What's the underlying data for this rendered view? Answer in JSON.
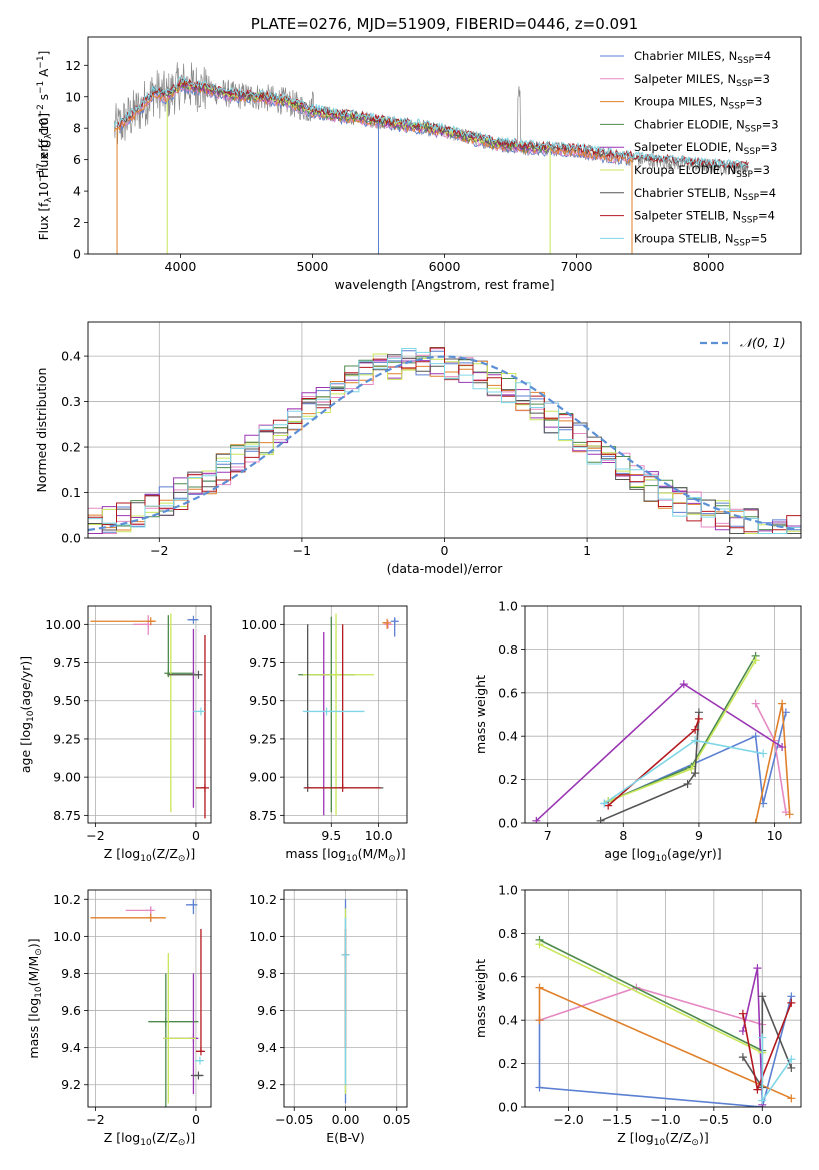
{
  "figure_title": "PLATE=0276, MJD=51909, FIBERID=0446, z=0.091",
  "colors": {
    "chabrier_miles": "#5b7fd1",
    "salpeter_miles": "#e589c3",
    "kroupa_miles": "#e0802a",
    "chabrier_elodie": "#4c8a4c",
    "salpeter_elodie": "#9a35b3",
    "kroupa_elodie": "#c8e65a",
    "chabrier_stelib": "#555555",
    "salpeter_stelib": "#b3181e",
    "kroupa_stelib": "#7fd6e6",
    "data_spectrum": "#888888",
    "normal_curve": "#5b8fd6",
    "grid": "#b0b0b0"
  },
  "chart_data": [
    {
      "id": "spectrum",
      "type": "line",
      "title": "PLATE=0276, MJD=51909, FIBERID=0446, z=0.091",
      "xlabel": "wavelength [Angstrom, rest frame]",
      "ylabel": "Flux [f",
      "ylabel_sub": "λ",
      "ylabel_rest": "10",
      "ylabel_exp": "−17",
      "ylabel_tail": " erg cm",
      "ylabel_exp2": "−2",
      "ylabel_tail2": " s",
      "ylabel_exp3": "−1",
      "ylabel_tail3": " A",
      "ylabel_exp4": "−1",
      "ylabel_end": "]",
      "xlim": [
        3300,
        8700
      ],
      "ylim": [
        0,
        13.8
      ],
      "grid": false,
      "xticks": [
        4000,
        5000,
        6000,
        7000,
        8000
      ],
      "yticks": [
        0,
        2,
        4,
        6,
        8,
        10,
        12
      ],
      "legend_position": "top-right",
      "legend": [
        {
          "name": "Chabrier MILES, N",
          "sub": "SSP",
          "suffix": "=4",
          "color_key": "chabrier_miles"
        },
        {
          "name": "Salpeter MILES, N",
          "sub": "SSP",
          "suffix": "=3",
          "color_key": "salpeter_miles"
        },
        {
          "name": "Kroupa MILES, N",
          "sub": "SSP",
          "suffix": "=3",
          "color_key": "kroupa_miles"
        },
        {
          "name": "Chabrier ELODIE, N",
          "sub": "SSP",
          "suffix": "=3",
          "color_key": "chabrier_elodie"
        },
        {
          "name": "Salpeter ELODIE, N",
          "sub": "SSP",
          "suffix": "=3",
          "color_key": "salpeter_elodie"
        },
        {
          "name": "Kroupa ELODIE, N",
          "sub": "SSP",
          "suffix": "=3",
          "color_key": "kroupa_elodie"
        },
        {
          "name": "Chabrier STELIB, N",
          "sub": "SSP",
          "suffix": "=4",
          "color_key": "chabrier_stelib"
        },
        {
          "name": "Salpeter STELIB, N",
          "sub": "SSP",
          "suffix": "=4",
          "color_key": "salpeter_stelib"
        },
        {
          "name": "Kroupa STELIB, N",
          "sub": "SSP",
          "suffix": "=5",
          "color_key": "kroupa_stelib"
        }
      ],
      "continuum": {
        "x": [
          3520,
          3600,
          3700,
          3800,
          3900,
          4000,
          4200,
          4400,
          4600,
          4800,
          5000,
          5200,
          5400,
          5600,
          5800,
          6000,
          6200,
          6400,
          6600,
          6800,
          7000,
          7200,
          7400,
          7600,
          7800,
          8000,
          8200
        ],
        "y": [
          8.0,
          8.6,
          9.3,
          10.3,
          10.0,
          10.8,
          10.5,
          10.1,
          10.0,
          9.7,
          9.1,
          8.8,
          8.6,
          8.3,
          8.1,
          7.8,
          7.4,
          7.0,
          6.8,
          6.7,
          6.6,
          6.3,
          6.1,
          5.9,
          5.8,
          5.6,
          5.5
        ]
      }
    },
    {
      "id": "residuals",
      "type": "histogram",
      "xlabel": "(data-model)/error",
      "ylabel": "Normed distribution",
      "xlim": [
        -2.5,
        2.5
      ],
      "ylim": [
        0,
        0.475
      ],
      "grid": true,
      "xticks": [
        -2,
        -1,
        0,
        1,
        2
      ],
      "yticks": [
        0.0,
        0.1,
        0.2,
        0.3,
        0.4
      ],
      "legend_position": "top-right",
      "legend": [
        {
          "name": "𝒩(0, 1)",
          "style": "dashed",
          "color_key": "normal_curve"
        }
      ],
      "bin_width": 0.1
    },
    {
      "id": "age_vs_Z",
      "type": "errorbar",
      "xlabel": "Z [log",
      "xlabel_sub": "10",
      "xlabel_rest": "(Z/Z",
      "xlabel_sub2": "⊙",
      "xlabel_end": ")]",
      "ylabel": "age  [log",
      "ylabel_sub": "10",
      "ylabel_rest": "(age/yr)]",
      "xlim": [
        -2.15,
        0.3
      ],
      "ylim": [
        8.7,
        10.12
      ],
      "grid": true,
      "xticks": [
        -2,
        0
      ],
      "yticks": [
        8.75,
        9.0,
        9.25,
        9.5,
        9.75,
        10.0
      ],
      "points": [
        {
          "x": -0.05,
          "y": 10.03,
          "xerr": [
            0.12,
            0.1
          ],
          "yerr": [
            0.0,
            0.0
          ],
          "color_key": "chabrier_miles"
        },
        {
          "x": -0.95,
          "y": 10.0,
          "xerr": [
            0.3,
            0.0
          ],
          "yerr": [
            0.07,
            0.06
          ],
          "color_key": "salpeter_miles"
        },
        {
          "x": -0.9,
          "y": 10.02,
          "xerr": [
            1.2,
            0.1
          ],
          "yerr": [
            0.0,
            0.0
          ],
          "color_key": "kroupa_miles"
        },
        {
          "x": -0.55,
          "y": 9.68,
          "xerr": [
            0.0,
            0.52
          ],
          "yerr": [
            0.0,
            0.38
          ],
          "color_key": "chabrier_elodie"
        },
        {
          "x": -0.05,
          "y": 9.67,
          "xerr": [
            0.0,
            0.1
          ],
          "yerr": [
            0.87,
            0.3
          ],
          "color_key": "salpeter_elodie"
        },
        {
          "x": -0.5,
          "y": 9.67,
          "xerr": [
            0.0,
            0.55
          ],
          "yerr": [
            0.9,
            0.4
          ],
          "color_key": "kroupa_elodie"
        },
        {
          "x": 0.05,
          "y": 9.67,
          "xerr": [
            0.62,
            0.0
          ],
          "yerr": [
            0.0,
            0.0
          ],
          "color_key": "chabrier_stelib"
        },
        {
          "x": 0.18,
          "y": 8.93,
          "xerr": [
            0.18,
            0.02
          ],
          "yerr": [
            0.2,
            1.0
          ],
          "color_key": "salpeter_stelib"
        },
        {
          "x": 0.1,
          "y": 9.43,
          "xerr": [
            0.15,
            0.05
          ],
          "yerr": [
            0.0,
            0.0
          ],
          "color_key": "kroupa_stelib"
        }
      ]
    },
    {
      "id": "age_vs_mass",
      "type": "errorbar",
      "xlabel": "mass [log",
      "xlabel_sub": "10",
      "xlabel_rest": "(M/M",
      "xlabel_sub2": "⊙",
      "xlabel_end": ")]",
      "ylabel": "",
      "xlim": [
        9.0,
        10.3
      ],
      "ylim": [
        8.7,
        10.12
      ],
      "grid": true,
      "xticks": [
        9.5,
        10.0
      ],
      "yticks": [
        8.75,
        9.0,
        9.25,
        9.5,
        9.75,
        10.0
      ],
      "points": [
        {
          "x": 10.17,
          "y": 10.02,
          "xerr": [
            0.0,
            0.0
          ],
          "yerr": [
            0.1,
            0.02
          ],
          "color_key": "chabrier_miles"
        },
        {
          "x": 10.1,
          "y": 10.0,
          "xerr": [
            0.0,
            0.0
          ],
          "yerr": [
            0.0,
            0.0
          ],
          "color_key": "salpeter_miles"
        },
        {
          "x": 10.09,
          "y": 10.01,
          "xerr": [
            0.05,
            0.0
          ],
          "yerr": [
            0.04,
            0.0
          ],
          "color_key": "kroupa_miles"
        },
        {
          "x": 9.5,
          "y": 9.67,
          "xerr": [
            0.35,
            0.25
          ],
          "yerr": [
            0.9,
            0.38
          ],
          "color_key": "chabrier_elodie"
        },
        {
          "x": 9.42,
          "y": 9.67,
          "xerr": [
            0.0,
            0.0
          ],
          "yerr": [
            0.92,
            0.28
          ],
          "color_key": "salpeter_elodie"
        },
        {
          "x": 9.55,
          "y": 9.67,
          "xerr": [
            0.35,
            0.4
          ],
          "yerr": [
            0.92,
            0.4
          ],
          "color_key": "kroupa_elodie"
        },
        {
          "x": 9.25,
          "y": 8.93,
          "xerr": [
            0.0,
            0.8
          ],
          "yerr": [
            0.0,
            1.07
          ],
          "color_key": "chabrier_stelib"
        },
        {
          "x": 9.62,
          "y": 8.93,
          "xerr": [
            0.4,
            0.4
          ],
          "yerr": [
            0.0,
            1.07
          ],
          "color_key": "salpeter_stelib"
        },
        {
          "x": 9.45,
          "y": 9.43,
          "xerr": [
            0.25,
            0.4
          ],
          "yerr": [
            0.0,
            0.0
          ],
          "color_key": "kroupa_stelib"
        }
      ]
    },
    {
      "id": "weight_vs_age",
      "type": "line",
      "xlabel": "age  [log",
      "xlabel_sub": "10",
      "xlabel_rest": "(age/yr)]",
      "ylabel": "mass weight",
      "xlim": [
        6.7,
        10.35
      ],
      "ylim": [
        0.0,
        1.0
      ],
      "grid": true,
      "xticks": [
        7,
        8,
        9,
        10
      ],
      "yticks": [
        0.0,
        0.2,
        0.4,
        0.6,
        0.8,
        1.0
      ],
      "series": [
        {
          "color_key": "chabrier_miles",
          "x": [
            7.75,
            9.75,
            9.85,
            10.15
          ],
          "y": [
            0.09,
            0.4,
            0.09,
            0.51
          ]
        },
        {
          "color_key": "salpeter_miles",
          "x": [
            9.75,
            10.0,
            10.15
          ],
          "y": [
            0.55,
            0.38,
            0.05
          ]
        },
        {
          "color_key": "kroupa_miles",
          "x": [
            9.75,
            10.1,
            10.2
          ],
          "y": [
            0.0,
            0.55,
            0.04
          ]
        },
        {
          "color_key": "chabrier_elodie",
          "x": [
            7.8,
            8.9,
            9.75
          ],
          "y": [
            0.1,
            0.26,
            0.77
          ]
        },
        {
          "color_key": "salpeter_elodie",
          "x": [
            6.85,
            8.8,
            10.1
          ],
          "y": [
            0.01,
            0.64,
            0.35
          ]
        },
        {
          "color_key": "kroupa_elodie",
          "x": [
            7.8,
            8.9,
            9.75
          ],
          "y": [
            0.1,
            0.25,
            0.75
          ]
        },
        {
          "color_key": "chabrier_stelib",
          "x": [
            7.7,
            8.85,
            8.95,
            9.0
          ],
          "y": [
            0.01,
            0.18,
            0.23,
            0.51
          ]
        },
        {
          "color_key": "salpeter_stelib",
          "x": [
            7.8,
            8.95,
            9.0
          ],
          "y": [
            0.08,
            0.43,
            0.48
          ]
        },
        {
          "color_key": "kroupa_stelib",
          "x": [
            7.75,
            8.95,
            9.85
          ],
          "y": [
            0.09,
            0.38,
            0.32
          ]
        }
      ]
    },
    {
      "id": "mass_vs_Z",
      "type": "errorbar",
      "xlabel": "Z [log",
      "xlabel_sub": "10",
      "xlabel_rest": "(Z/Z",
      "xlabel_sub2": "⊙",
      "xlabel_end": ")]",
      "ylabel": "mass [log",
      "ylabel_sub": "10",
      "ylabel_rest": "(M/M",
      "ylabel_sub2": "⊙",
      "ylabel_end": ")]",
      "xlim": [
        -2.15,
        0.3
      ],
      "ylim": [
        9.08,
        10.25
      ],
      "grid": true,
      "xticks": [
        -2,
        0
      ],
      "yticks": [
        9.2,
        9.4,
        9.6,
        9.8,
        10.0,
        10.2
      ],
      "points": [
        {
          "x": -0.05,
          "y": 10.17,
          "xerr": [
            0.15,
            0.05
          ],
          "yerr": [
            0.05,
            0.03
          ],
          "color_key": "chabrier_miles"
        },
        {
          "x": -0.9,
          "y": 10.14,
          "xerr": [
            0.5,
            0.0
          ],
          "yerr": [
            0.06,
            0.02
          ],
          "color_key": "salpeter_miles"
        },
        {
          "x": -0.9,
          "y": 10.1,
          "xerr": [
            1.2,
            0.3
          ],
          "yerr": [
            0.0,
            0.0
          ],
          "color_key": "kroupa_miles"
        },
        {
          "x": -0.6,
          "y": 9.54,
          "xerr": [
            0.35,
            0.65
          ],
          "yerr": [
            0.46,
            0.26
          ],
          "color_key": "chabrier_elodie"
        },
        {
          "x": -0.05,
          "y": 9.45,
          "xerr": [
            0.6,
            0.1
          ],
          "yerr": [
            0.3,
            0.35
          ],
          "color_key": "salpeter_elodie"
        },
        {
          "x": -0.55,
          "y": 9.45,
          "xerr": [
            0.1,
            0.55
          ],
          "yerr": [
            0.35,
            0.46
          ],
          "color_key": "kroupa_elodie"
        },
        {
          "x": 0.05,
          "y": 9.25,
          "xerr": [
            0.15,
            0.1
          ],
          "yerr": [
            0.0,
            0.0
          ],
          "color_key": "chabrier_stelib"
        },
        {
          "x": 0.1,
          "y": 9.38,
          "xerr": [
            0.1,
            0.05
          ],
          "yerr": [
            0.0,
            0.66
          ],
          "color_key": "salpeter_stelib"
        },
        {
          "x": 0.08,
          "y": 9.33,
          "xerr": [
            0.1,
            0.05
          ],
          "yerr": [
            0.0,
            0.0
          ],
          "color_key": "kroupa_stelib"
        }
      ]
    },
    {
      "id": "mass_vs_ebv",
      "type": "errorbar",
      "xlabel": "E(B-V)",
      "ylabel": "",
      "xlim": [
        -0.06,
        0.06
      ],
      "ylim": [
        9.08,
        10.25
      ],
      "grid": true,
      "xticks": [
        -0.05,
        0.0,
        0.05
      ],
      "yticks": [
        9.2,
        9.4,
        9.6,
        9.8,
        10.0,
        10.2
      ],
      "points": [
        {
          "x": 0.0,
          "y": 9.9,
          "xerr": [
            0.0,
            0.0
          ],
          "yerr": [
            0.8,
            0.3
          ],
          "color_key": "chabrier_miles"
        },
        {
          "x": 0.0,
          "y": 9.9,
          "xerr": [
            0.0,
            0.0
          ],
          "yerr": [
            0.75,
            0.25
          ],
          "color_key": "kroupa_elodie"
        },
        {
          "x": 0.0,
          "y": 9.9,
          "xerr": [
            0.0,
            0.0
          ],
          "yerr": [
            0.5,
            0.14
          ],
          "color_key": "salpeter_stelib"
        },
        {
          "x": 0.0,
          "y": 9.9,
          "xerr": [
            0.0,
            0.0
          ],
          "yerr": [
            0.7,
            0.2
          ],
          "color_key": "kroupa_stelib"
        }
      ]
    },
    {
      "id": "weight_vs_Z",
      "type": "line",
      "xlabel": "Z [log",
      "xlabel_sub": "10",
      "xlabel_rest": "(Z/Z",
      "xlabel_sub2": "⊙",
      "xlabel_end": ")]",
      "ylabel": "mass weight",
      "xlim": [
        -2.45,
        0.4
      ],
      "ylim": [
        0.0,
        1.0
      ],
      "grid": true,
      "xticks": [
        -2.0,
        -1.5,
        -1.0,
        -0.5,
        0.0
      ],
      "yticks": [
        0.0,
        0.2,
        0.4,
        0.6,
        0.8,
        1.0
      ],
      "series": [
        {
          "color_key": "chabrier_miles",
          "x": [
            -2.3,
            -2.3,
            0.0,
            0.3
          ],
          "y": [
            0.4,
            0.09,
            0.0,
            0.51
          ]
        },
        {
          "color_key": "salpeter_miles",
          "x": [
            -2.3,
            -1.3,
            0.0
          ],
          "y": [
            0.4,
            0.55,
            0.38
          ]
        },
        {
          "color_key": "kroupa_miles",
          "x": [
            -2.3,
            -2.3,
            0.3
          ],
          "y": [
            0.4,
            0.55,
            0.04
          ]
        },
        {
          "color_key": "chabrier_elodie",
          "x": [
            -2.3,
            0.0
          ],
          "y": [
            0.77,
            0.26
          ]
        },
        {
          "color_key": "salpeter_elodie",
          "x": [
            -0.2,
            -0.05,
            0.0
          ],
          "y": [
            0.35,
            0.64,
            0.01
          ]
        },
        {
          "color_key": "kroupa_elodie",
          "x": [
            -2.3,
            0.0
          ],
          "y": [
            0.75,
            0.25
          ]
        },
        {
          "color_key": "chabrier_stelib",
          "x": [
            -0.2,
            0.0,
            0.0,
            0.3
          ],
          "y": [
            0.23,
            0.09,
            0.51,
            0.18
          ]
        },
        {
          "color_key": "salpeter_stelib",
          "x": [
            -0.2,
            -0.05,
            0.3
          ],
          "y": [
            0.43,
            0.08,
            0.48
          ]
        },
        {
          "color_key": "kroupa_stelib",
          "x": [
            0.0,
            0.0,
            0.3
          ],
          "y": [
            0.32,
            0.03,
            0.22
          ]
        }
      ]
    }
  ]
}
